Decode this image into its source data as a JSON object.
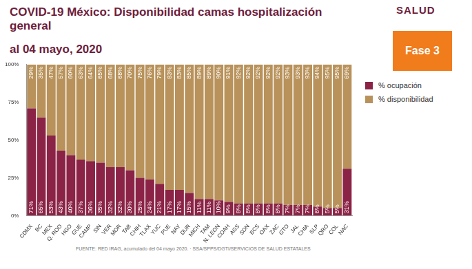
{
  "chart_data": {
    "type": "bar",
    "title": "COVID-19 México: Disponibilidad camas hospitalización general",
    "subtitle": "al 04 mayo, 2020",
    "annotations": [
      "Fase 3",
      "SALUD",
      "FUENTE: RED IRAG, acumulado del 04 mayo 2020.  ·  SSA/SPPS/DGTI/SERVICIOS DE SALUD ESTATALES"
    ],
    "categories": [
      "CDMX",
      "BC",
      "MEX",
      "Q. ROO",
      "HGO",
      "GUE",
      "CAMP",
      "SIN",
      "VER",
      "MOR",
      "TAB",
      "CHIH",
      "TLAX",
      "YUC",
      "PUE",
      "NAY",
      "DUR",
      "MICH",
      "TAM",
      "N. LEON",
      "COAH",
      "AGS",
      "SON",
      "BCS",
      "OAX",
      "ZAC",
      "GTO",
      "JAL",
      "CHIA",
      "SLP",
      "QRO",
      "COL",
      "NAC"
    ],
    "series": [
      {
        "name": "% ocupación",
        "color": "#8b2346",
        "values": [
          71,
          65,
          53,
          43,
          40,
          37,
          36,
          35,
          32,
          32,
          30,
          25,
          24,
          21,
          17,
          17,
          15,
          11,
          11,
          10,
          9,
          8,
          8,
          8,
          8,
          8,
          7,
          7,
          7,
          6,
          5,
          5,
          31
        ],
        "value_labels": [
          "71%",
          "65%",
          "53%",
          "43%",
          "40%",
          "37%",
          "36%",
          "35%",
          "32%",
          "32%",
          "30%",
          "25%",
          "24%",
          "21%",
          "17%",
          "17%",
          "15%",
          "11%",
          "11%",
          "10%",
          "9%",
          "8%",
          "8%",
          "8%",
          "8%",
          "8%",
          "7%",
          "7%",
          "7%",
          "6%",
          "5%",
          "5%",
          "31%"
        ]
      },
      {
        "name": "% disponibilidad",
        "color": "#b8925a",
        "values": [
          29,
          35,
          47,
          57,
          60,
          63,
          64,
          65,
          68,
          68,
          70,
          75,
          76,
          79,
          83,
          83,
          85,
          89,
          89,
          90,
          91,
          92,
          92,
          92,
          92,
          92,
          93,
          93,
          93,
          94,
          95,
          95,
          69
        ],
        "value_labels": [
          "29%",
          "35%",
          "47%",
          "57%",
          "60%",
          "63%",
          "64%",
          "65%",
          "68%",
          "68%",
          "70%",
          "75%",
          "76%",
          "79%",
          "83%",
          "83%",
          "85%",
          "89%",
          "89%",
          "90%",
          "91%",
          "92%",
          "92%",
          "92%",
          "92%",
          "92%",
          "93%",
          "93%",
          "93%",
          "94%",
          "95%",
          "95%",
          "69%"
        ]
      }
    ],
    "stacked": true,
    "data_labels": true,
    "grid": false,
    "legend": "right",
    "ylim": [
      0,
      100
    ],
    "yticks": [
      {
        "value": 0,
        "label": "0%"
      },
      {
        "value": 25,
        "label": "25%"
      },
      {
        "value": 50,
        "label": "50%"
      },
      {
        "value": 75,
        "label": "75%"
      },
      {
        "value": 100,
        "label": "100%"
      }
    ]
  }
}
